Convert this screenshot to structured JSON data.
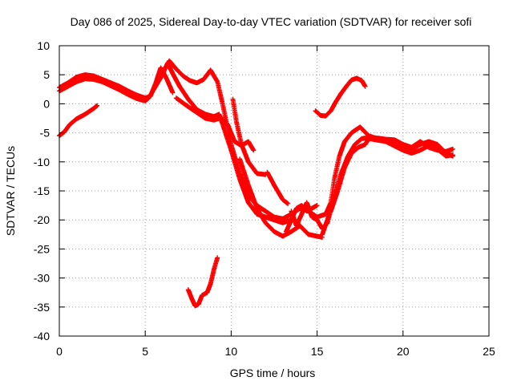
{
  "chart_data": {
    "type": "scatter",
    "title": "Day 086 of 2025, Sidereal Day-to-day VTEC variation (SDTVAR) for receiver sofi",
    "xlabel": "GPS time / hours",
    "ylabel": "SDTVAR / TECUs",
    "xlim": [
      0,
      25
    ],
    "ylim": [
      -40,
      10
    ],
    "xticks": [
      "0",
      "5",
      "10",
      "15",
      "20",
      "25"
    ],
    "yticks": [
      "10",
      "5",
      "0",
      "-5",
      "-10",
      "-15",
      "-20",
      "-25",
      "-30",
      "-35",
      "-40"
    ],
    "grid": true,
    "marker": "+",
    "series": [
      {
        "name": "track-a",
        "color": "#ff0000",
        "points": [
          [
            0.0,
            2.8
          ],
          [
            0.5,
            3.6
          ],
          [
            1.0,
            4.6
          ],
          [
            1.5,
            5.0
          ],
          [
            2.0,
            4.8
          ],
          [
            2.5,
            4.2
          ],
          [
            3.0,
            3.6
          ],
          [
            3.5,
            3.0
          ],
          [
            4.0,
            2.2
          ],
          [
            4.5,
            1.5
          ],
          [
            5.0,
            1.0
          ],
          [
            5.3,
            1.3
          ],
          [
            5.6,
            3.5
          ],
          [
            5.9,
            6.2
          ],
          [
            6.2,
            4.6
          ],
          [
            6.6,
            1.9
          ]
        ]
      },
      {
        "name": "track-b",
        "color": "#ff0000",
        "points": [
          [
            0.0,
            2.2
          ],
          [
            0.5,
            3.0
          ],
          [
            1.0,
            3.8
          ],
          [
            1.5,
            4.3
          ],
          [
            2.0,
            4.2
          ],
          [
            2.5,
            3.8
          ],
          [
            3.0,
            3.1
          ],
          [
            3.5,
            2.4
          ],
          [
            4.0,
            1.6
          ],
          [
            4.5,
            0.9
          ],
          [
            5.0,
            0.5
          ],
          [
            5.2,
            1.0
          ],
          [
            5.5,
            2.5
          ],
          [
            6.0,
            5.0
          ],
          [
            6.3,
            7.0
          ],
          [
            6.6,
            5.2
          ],
          [
            7.0,
            3.0
          ],
          [
            7.5,
            0.8
          ],
          [
            8.0,
            -1.0
          ],
          [
            8.5,
            -1.8
          ],
          [
            9.0,
            -2.2
          ],
          [
            9.3,
            -1.8
          ],
          [
            9.5,
            -3.5
          ],
          [
            10.0,
            -8.0
          ],
          [
            10.5,
            -13.0
          ],
          [
            11.0,
            -17.0
          ],
          [
            11.5,
            -19.0
          ],
          [
            12.0,
            -19.5
          ],
          [
            12.5,
            -20.0
          ],
          [
            13.0,
            -20.5
          ],
          [
            13.5,
            -20.0
          ]
        ]
      },
      {
        "name": "track-c",
        "color": "#ff0000",
        "points": [
          [
            0.0,
            -5.5
          ],
          [
            0.3,
            -4.8
          ],
          [
            0.6,
            -3.6
          ],
          [
            1.0,
            -2.6
          ],
          [
            1.5,
            -1.8
          ],
          [
            2.0,
            -0.8
          ],
          [
            2.2,
            -0.3
          ]
        ]
      },
      {
        "name": "track-d",
        "color": "#ff0000",
        "points": [
          [
            5.8,
            4.2
          ],
          [
            6.1,
            5.8
          ],
          [
            6.4,
            7.4
          ],
          [
            6.8,
            6.0
          ],
          [
            7.2,
            4.8
          ],
          [
            7.6,
            4.0
          ],
          [
            8.0,
            3.6
          ],
          [
            8.4,
            4.2
          ],
          [
            8.8,
            5.8
          ],
          [
            9.2,
            3.8
          ],
          [
            9.5,
            0.0
          ],
          [
            10.0,
            -7.0
          ],
          [
            10.5,
            -12.0
          ],
          [
            11.0,
            -15.8
          ],
          [
            11.5,
            -17.5
          ],
          [
            12.0,
            -18.5
          ],
          [
            12.5,
            -19.5
          ],
          [
            13.0,
            -19.8
          ],
          [
            13.5,
            -19.0
          ],
          [
            14.0,
            -18.0
          ],
          [
            14.5,
            -18.5
          ],
          [
            15.0,
            -19.5
          ],
          [
            15.5,
            -19.0
          ],
          [
            15.8,
            -17.0
          ],
          [
            16.0,
            -13.0
          ],
          [
            16.3,
            -9.0
          ],
          [
            16.6,
            -6.5
          ],
          [
            17.0,
            -5.0
          ],
          [
            17.5,
            -4.0
          ],
          [
            18.0,
            -5.5
          ],
          [
            18.5,
            -6.0
          ],
          [
            19.0,
            -6.2
          ],
          [
            19.5,
            -6.5
          ],
          [
            20.0,
            -7.5
          ],
          [
            20.5,
            -7.8
          ],
          [
            21.0,
            -7.0
          ],
          [
            21.5,
            -6.5
          ],
          [
            22.0,
            -7.0
          ],
          [
            22.5,
            -8.5
          ],
          [
            22.9,
            -9.0
          ]
        ]
      },
      {
        "name": "track-e",
        "color": "#ff0000",
        "points": [
          [
            6.8,
            1.0
          ],
          [
            7.5,
            -0.5
          ],
          [
            8.0,
            -1.5
          ],
          [
            8.5,
            -2.5
          ],
          [
            9.0,
            -2.8
          ],
          [
            9.4,
            -2.4
          ],
          [
            9.8,
            -3.6
          ],
          [
            10.2,
            -6.5
          ],
          [
            10.6,
            -7.2
          ],
          [
            11.0,
            -6.5
          ],
          [
            11.3,
            -8.0
          ]
        ]
      },
      {
        "name": "track-f",
        "color": "#ff0000",
        "points": [
          [
            10.1,
            0.8
          ],
          [
            10.3,
            -3.0
          ],
          [
            10.6,
            -7.0
          ],
          [
            11.0,
            -10.0
          ],
          [
            11.5,
            -12.0
          ],
          [
            12.0,
            -12.2
          ]
        ]
      },
      {
        "name": "track-g",
        "color": "#ff0000",
        "points": [
          [
            10.5,
            -9.5
          ],
          [
            11.0,
            -14.0
          ],
          [
            11.5,
            -18.0
          ],
          [
            12.0,
            -20.5
          ],
          [
            12.5,
            -22.0
          ],
          [
            13.0,
            -22.8
          ],
          [
            13.5,
            -22.0
          ],
          [
            14.0,
            -21.0
          ],
          [
            14.5,
            -22.5
          ],
          [
            15.0,
            -22.8
          ],
          [
            15.3,
            -23.0
          ]
        ]
      },
      {
        "name": "track-h",
        "color": "#ff0000",
        "points": [
          [
            12.1,
            -11.8
          ],
          [
            12.5,
            -14.0
          ],
          [
            13.0,
            -16.5
          ],
          [
            13.3,
            -17.2
          ]
        ]
      },
      {
        "name": "track-i",
        "color": "#ff0000",
        "points": [
          [
            13.5,
            -18.5
          ],
          [
            13.8,
            -21.0
          ],
          [
            14.1,
            -19.0
          ],
          [
            14.4,
            -17.0
          ],
          [
            14.7,
            -19.5
          ],
          [
            15.0,
            -20.0
          ],
          [
            15.3,
            -21.5
          ],
          [
            15.6,
            -20.5
          ],
          [
            16.0,
            -16.0
          ]
        ]
      },
      {
        "name": "track-j",
        "color": "#ff0000",
        "points": [
          [
            13.2,
            -22.0
          ],
          [
            13.5,
            -20.0
          ],
          [
            13.8,
            -18.0
          ],
          [
            14.1,
            -17.5
          ],
          [
            14.4,
            -18.5
          ],
          [
            14.7,
            -18.0
          ],
          [
            15.0,
            -17.5
          ]
        ]
      },
      {
        "name": "track-k",
        "color": "#ff0000",
        "points": [
          [
            15.3,
            -22.5
          ],
          [
            15.6,
            -20.0
          ],
          [
            16.0,
            -16.0
          ],
          [
            16.4,
            -12.0
          ],
          [
            16.8,
            -9.0
          ],
          [
            17.2,
            -7.0
          ],
          [
            17.6,
            -6.0
          ],
          [
            18.0,
            -5.8
          ],
          [
            18.5,
            -5.9
          ],
          [
            19.0,
            -6.1
          ],
          [
            19.5,
            -6.2
          ],
          [
            20.0,
            -7.0
          ],
          [
            20.5,
            -7.5
          ],
          [
            21.0,
            -6.5
          ],
          [
            21.5,
            -7.5
          ],
          [
            22.0,
            -8.0
          ],
          [
            22.5,
            -8.2
          ],
          [
            22.9,
            -7.8
          ]
        ]
      },
      {
        "name": "track-l",
        "color": "#ff0000",
        "points": [
          [
            15.8,
            -18.5
          ],
          [
            16.2,
            -15.0
          ],
          [
            16.6,
            -11.0
          ],
          [
            17.0,
            -8.5
          ],
          [
            17.4,
            -7.5
          ],
          [
            17.8,
            -7.0
          ],
          [
            18.0,
            -6.0
          ],
          [
            19.0,
            -6.5
          ],
          [
            20.0,
            -8.0
          ],
          [
            20.5,
            -8.5
          ],
          [
            21.0,
            -8.0
          ],
          [
            21.5,
            -7.2
          ],
          [
            22.0,
            -7.8
          ],
          [
            22.5,
            -9.0
          ],
          [
            22.9,
            -8.8
          ]
        ]
      },
      {
        "name": "track-m",
        "color": "#ff0000",
        "points": [
          [
            14.9,
            -1.2
          ],
          [
            15.2,
            -2.0
          ],
          [
            15.5,
            -2.1
          ],
          [
            15.8,
            -1.2
          ],
          [
            16.1,
            0.4
          ],
          [
            16.4,
            1.8
          ],
          [
            16.7,
            3.0
          ],
          [
            17.0,
            4.1
          ],
          [
            17.3,
            4.4
          ],
          [
            17.6,
            4.0
          ],
          [
            17.8,
            3.0
          ]
        ]
      },
      {
        "name": "track-n",
        "color": "#ff0000",
        "points": [
          [
            7.5,
            -32.0
          ],
          [
            7.7,
            -33.5
          ],
          [
            7.9,
            -34.8
          ],
          [
            8.1,
            -34.5
          ],
          [
            8.3,
            -33.0
          ],
          [
            8.6,
            -32.5
          ],
          [
            8.8,
            -31.0
          ],
          [
            9.0,
            -28.5
          ],
          [
            9.2,
            -26.5
          ]
        ]
      }
    ]
  }
}
